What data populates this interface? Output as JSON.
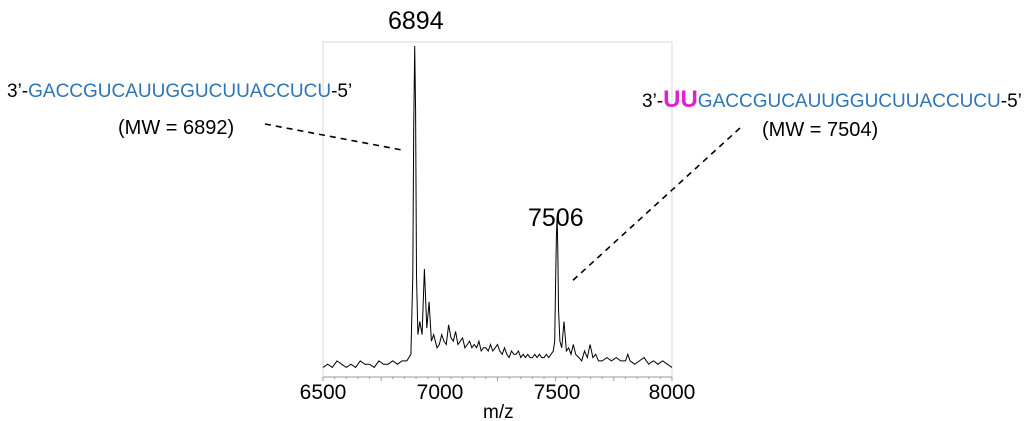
{
  "annotations": {
    "left_sequence": {
      "prefix": "3’-",
      "modification": "",
      "sequence": "GACCGUCAUUGGUCUUACCUCU",
      "suffix": "-5’",
      "mw": "(MW = 6892)",
      "peak_label": "6894"
    },
    "right_sequence": {
      "prefix": "3’-",
      "modification": "UU",
      "sequence": "GACCGUCAUUGGUCUUACCUCU",
      "suffix": "-5’",
      "mw": "(MW = 7504)",
      "peak_label": "7506"
    }
  },
  "colors": {
    "sequence": "#2E75B6",
    "modification": "#E020D0",
    "trace": "#000000",
    "frame": "#d9d9d9"
  },
  "chart_data": {
    "type": "line",
    "title": "",
    "xlabel": "m/z",
    "ylabel": "",
    "xlim": [
      6500,
      8000
    ],
    "ylim": [
      0,
      1
    ],
    "x_ticks": [
      6500,
      7000,
      7500,
      8000
    ],
    "x_tick_labels": [
      "6500",
      "7000",
      "7500",
      "8000"
    ],
    "grid": false,
    "legend": "none",
    "series": [
      {
        "x": [
          6500,
          6520,
          6540,
          6560,
          6580,
          6600,
          6620,
          6640,
          6660,
          6680,
          6700,
          6720,
          6740,
          6760,
          6780,
          6800,
          6820,
          6840,
          6860,
          6878,
          6886,
          6890,
          6894,
          6898,
          6902,
          6908,
          6916,
          6926,
          6936,
          6946,
          6956,
          6966,
          6976,
          6990,
          7000,
          7010,
          7020,
          7030,
          7040,
          7050,
          7060,
          7070,
          7080,
          7090,
          7100,
          7110,
          7120,
          7130,
          7140,
          7150,
          7160,
          7170,
          7180,
          7190,
          7200,
          7210,
          7220,
          7230,
          7240,
          7250,
          7260,
          7270,
          7280,
          7290,
          7300,
          7310,
          7320,
          7330,
          7340,
          7350,
          7360,
          7370,
          7380,
          7390,
          7400,
          7410,
          7420,
          7430,
          7440,
          7450,
          7460,
          7470,
          7480,
          7490,
          7496,
          7500,
          7503,
          7506,
          7509,
          7512,
          7518,
          7526,
          7536,
          7546,
          7556,
          7566,
          7576,
          7586,
          7600,
          7612,
          7624,
          7636,
          7648,
          7660,
          7672,
          7684,
          7700,
          7720,
          7740,
          7760,
          7780,
          7800,
          7810,
          7820,
          7840,
          7860,
          7880,
          7900,
          7920,
          7940,
          7960,
          7980,
          8000
        ],
        "y": [
          0.02,
          0.03,
          0.02,
          0.04,
          0.03,
          0.02,
          0.03,
          0.02,
          0.04,
          0.03,
          0.03,
          0.02,
          0.04,
          0.03,
          0.03,
          0.04,
          0.03,
          0.04,
          0.04,
          0.06,
          0.3,
          0.75,
          1.0,
          0.8,
          0.3,
          0.12,
          0.16,
          0.12,
          0.32,
          0.14,
          0.22,
          0.1,
          0.12,
          0.08,
          0.09,
          0.12,
          0.1,
          0.09,
          0.15,
          0.11,
          0.1,
          0.13,
          0.09,
          0.1,
          0.11,
          0.08,
          0.09,
          0.1,
          0.08,
          0.09,
          0.08,
          0.1,
          0.07,
          0.08,
          0.08,
          0.07,
          0.09,
          0.07,
          0.08,
          0.09,
          0.07,
          0.06,
          0.08,
          0.06,
          0.05,
          0.07,
          0.06,
          0.06,
          0.07,
          0.05,
          0.06,
          0.05,
          0.06,
          0.05,
          0.05,
          0.06,
          0.05,
          0.06,
          0.05,
          0.05,
          0.06,
          0.05,
          0.06,
          0.07,
          0.1,
          0.3,
          0.42,
          0.48,
          0.38,
          0.2,
          0.1,
          0.08,
          0.16,
          0.07,
          0.08,
          0.06,
          0.09,
          0.06,
          0.05,
          0.04,
          0.07,
          0.05,
          0.09,
          0.05,
          0.06,
          0.04,
          0.04,
          0.05,
          0.04,
          0.05,
          0.04,
          0.04,
          0.06,
          0.04,
          0.03,
          0.04,
          0.05,
          0.03,
          0.04,
          0.03,
          0.04,
          0.03,
          0.02
        ]
      }
    ],
    "peak_labels": [
      {
        "x": 6894,
        "label": "6894"
      },
      {
        "x": 7506,
        "label": "7506"
      }
    ]
  }
}
